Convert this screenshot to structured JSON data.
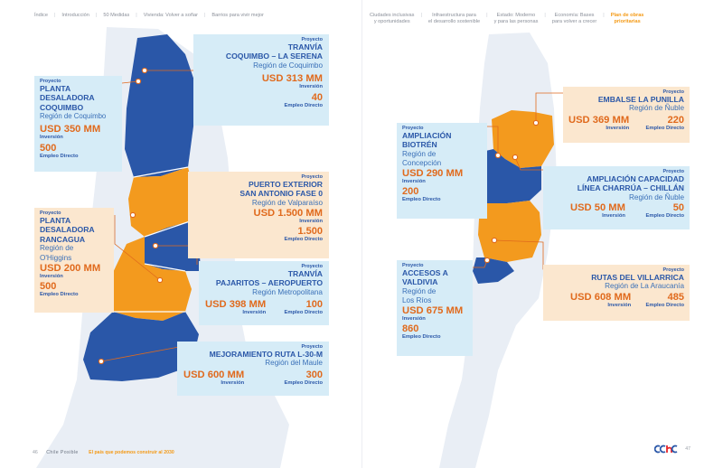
{
  "nav_left": [
    "Índice",
    "Introducción",
    "50 Medidas",
    "Vivienda: Volver a soñar",
    "Barrios para vivir mejor"
  ],
  "nav_right": [
    "Ciudades inclusivas\ny oportunidades",
    "Infraestructura para\nel desarrollo sostenible",
    "Estado: Moderno\ny para las personas",
    "Economía: Bases\npara volver a crecer",
    "Plan de obras\nprioritarias"
  ],
  "project_tag": "Proyecto",
  "investment_label": "Inversión",
  "jobs_label": "Empleo Directo",
  "projects": {
    "tranvia_coquimbo": {
      "name": "TRANVÍA\nCOQUIMBO – LA SERENA",
      "region": "Región de Coquimbo",
      "amount": "USD 313 MM",
      "jobs": "40"
    },
    "planta_coquimbo": {
      "name": "PLANTA\nDESALADORA\nCOQUIMBO",
      "region": "Región de Coquimbo",
      "amount": "USD 350 MM",
      "jobs": "500"
    },
    "puerto_san_antonio": {
      "name": "PUERTO EXTERIOR\nSAN ANTONIO FASE 0",
      "region": "Región de Valparaíso",
      "amount": "USD 1.500 MM",
      "jobs": "1.500"
    },
    "planta_rancagua": {
      "name": "PLANTA\nDESALADORA\nRANCAGUA",
      "region": "Región de\nO'Higgins",
      "amount": "USD 200 MM",
      "jobs": "500"
    },
    "tranvia_pajaritos": {
      "name": "TRANVÍA\nPAJARITOS – AEROPUERTO",
      "region": "Región Metropolitana",
      "amount": "USD 398 MM",
      "jobs": "100"
    },
    "ruta_l30m": {
      "name": "MEJORAMIENTO RUTA L-30-M",
      "region": "Región del Maule",
      "amount": "USD 600 MM",
      "jobs": "300"
    },
    "embalse_punilla": {
      "name": "EMBALSE LA PUNILLA",
      "region": "Región de Ñuble",
      "amount": "USD 369 MM",
      "jobs": "220"
    },
    "biotren": {
      "name": "AMPLIACIÓN\nBIOTRÉN",
      "region": "Región de\nConcepción",
      "amount": "USD 290 MM",
      "jobs": "200"
    },
    "charrua": {
      "name": "AMPLIACIÓN CAPACIDAD\nLÍNEA CHARRÚA – CHILLÁN",
      "region": "Región de Ñuble",
      "amount": "USD 50 MM",
      "jobs": "50"
    },
    "valdivia": {
      "name": "ACCESOS A\nVALDIVIA",
      "region": "Región de\nLos Ríos",
      "amount": "USD 675 MM",
      "jobs": "860"
    },
    "villarrica": {
      "name": "RUTAS DEL VILLARRICA",
      "region": "Región de La Araucanía",
      "amount": "USD 608 MM",
      "jobs": "485"
    }
  },
  "footer": {
    "page_left": "46",
    "brand": "Chile Posible",
    "tagline": "El país que podemos construir al 2030",
    "page_right": "47",
    "logo": "cchc"
  },
  "colors": {
    "blue": "#2a57a8",
    "orange": "#f49a16",
    "map_orange": "#f39a1e",
    "card_blue": "#d6ecf7",
    "card_peach": "#fbe7cf",
    "amount": "#e06a1d"
  }
}
